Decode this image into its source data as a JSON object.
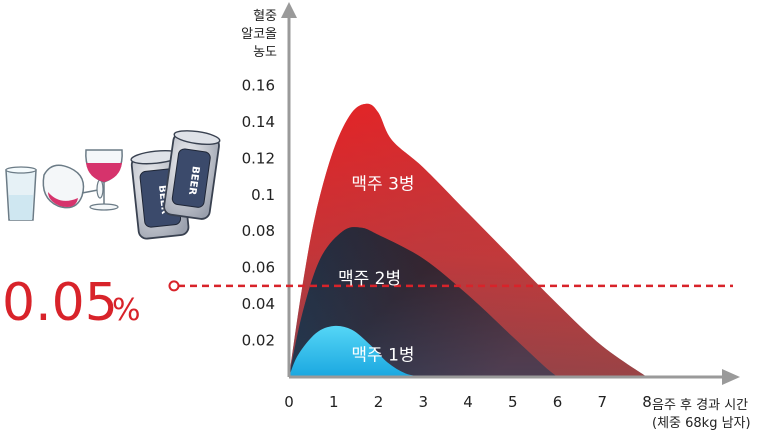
{
  "chart_data": {
    "type": "area",
    "ylabel": [
      "혈중",
      "알코올",
      "농도"
    ],
    "xlabel": [
      "음주 후 경과 시간",
      "(체중 68kg 남자)"
    ],
    "x_ticks": [
      "0",
      "1",
      "2",
      "3",
      "4",
      "5",
      "6",
      "7",
      "8"
    ],
    "y_ticks": [
      "0.02",
      "0.04",
      "0.06",
      "0.08",
      "0.1",
      "0.12",
      "0.14",
      "0.16"
    ],
    "xlim": [
      0,
      8
    ],
    "ylim": [
      0,
      0.16
    ],
    "threshold": {
      "value": 0.05,
      "label": "0.05",
      "unit": "%",
      "color": "#d8232a"
    },
    "series": [
      {
        "name": "맥주 3병",
        "points": [
          [
            0,
            0
          ],
          [
            0.3,
            0.05
          ],
          [
            0.6,
            0.09
          ],
          [
            1.0,
            0.125
          ],
          [
            1.4,
            0.145
          ],
          [
            1.75,
            0.15
          ],
          [
            2.0,
            0.145
          ],
          [
            2.3,
            0.13
          ],
          [
            3.0,
            0.115
          ],
          [
            4.0,
            0.09
          ],
          [
            5.0,
            0.065
          ],
          [
            6.0,
            0.04
          ],
          [
            7.0,
            0.017
          ],
          [
            8.0,
            0
          ]
        ],
        "color_top": "#e52225",
        "color_bottom": "#1c4f6e"
      },
      {
        "name": "맥주 2병",
        "points": [
          [
            0,
            0
          ],
          [
            0.3,
            0.035
          ],
          [
            0.7,
            0.065
          ],
          [
            1.2,
            0.08
          ],
          [
            1.6,
            0.082
          ],
          [
            2.0,
            0.078
          ],
          [
            3.0,
            0.065
          ],
          [
            4.0,
            0.045
          ],
          [
            5.0,
            0.022
          ],
          [
            5.7,
            0.006
          ],
          [
            6.0,
            0
          ]
        ],
        "color_top": "#3b1f24",
        "color_bottom": "#0a5f8c"
      },
      {
        "name": "맥주 1병",
        "points": [
          [
            0,
            0
          ],
          [
            0.2,
            0.012
          ],
          [
            0.6,
            0.024
          ],
          [
            1.0,
            0.028
          ],
          [
            1.4,
            0.026
          ],
          [
            1.8,
            0.018
          ],
          [
            2.2,
            0.008
          ],
          [
            2.6,
            0.002
          ],
          [
            3.0,
            0
          ]
        ],
        "color_top": "#4fd3f5",
        "color_bottom": "#1aa7e0"
      }
    ]
  },
  "illustration": {
    "icons": [
      "shot-glass-icon",
      "wine-glass-tipped-icon",
      "wine-glass-icon",
      "beer-can-icon",
      "beer-can-icon"
    ],
    "can_text": "BEER"
  }
}
